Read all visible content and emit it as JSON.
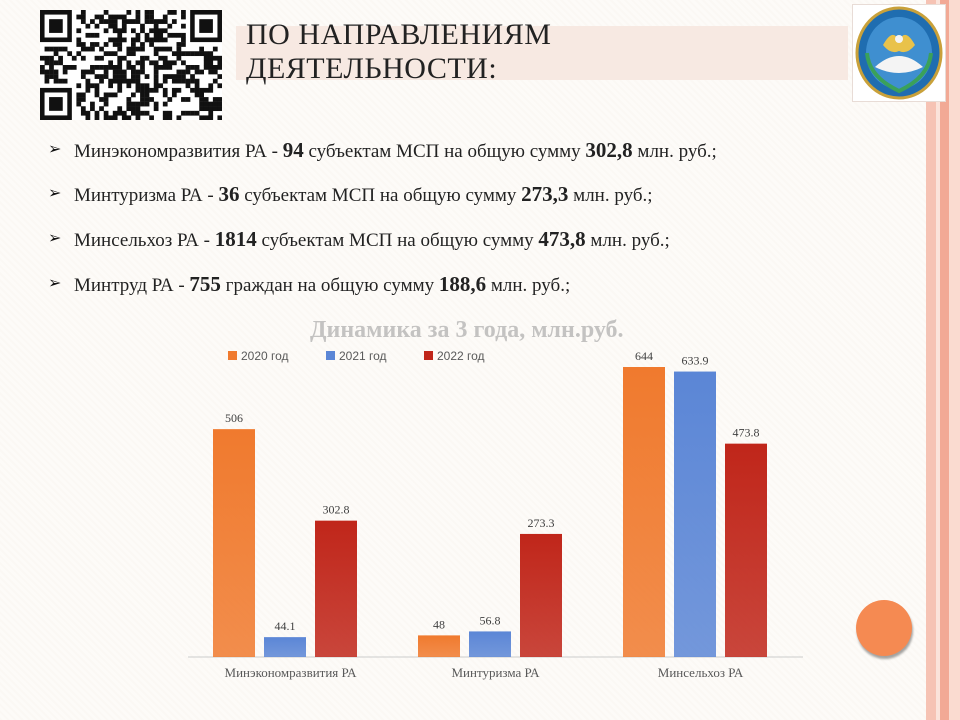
{
  "title_line1": "ПО НАПРАВЛЕНИЯМ",
  "title_line2": "ДЕЯТЕЛЬНОСТИ:",
  "bullets": [
    {
      "pre": "Минэкономразвития РА - ",
      "count": "94",
      "mid": " субъектам МСП на общую сумму ",
      "amount": "302,8",
      "post": " млн. руб.;"
    },
    {
      "pre": "Минтуризма РА - ",
      "count": "36",
      "mid": " субъектам МСП на общую сумму ",
      "amount": "273,3",
      "post": " млн. руб.;"
    },
    {
      "pre": "Минсельхоз РА - ",
      "count": "1814",
      "mid": " субъектам МСП на общую сумму ",
      "amount": "473,8",
      "post": " млн. руб.;"
    },
    {
      "pre": "Минтруд РА - ",
      "count": "755",
      "mid": " граждан на общую сумму ",
      "amount": "188,6",
      "post": " млн. руб.;"
    }
  ],
  "colors": {
    "s2020": "#f07a2e",
    "s2021": "#5b86d6",
    "s2022": "#c0261a"
  },
  "chart_data": {
    "type": "bar",
    "title": "Динамика за 3 года, млн.руб.",
    "categories": [
      "Минэкономразвития РА",
      "Минтуризма РА",
      "Минсельхоз РА"
    ],
    "series": [
      {
        "name": "2020 год",
        "values": [
          506,
          48,
          644
        ]
      },
      {
        "name": "2021 год",
        "values": [
          44.1,
          56.8,
          633.9
        ]
      },
      {
        "name": "2022 год",
        "values": [
          302.8,
          273.3,
          473.8
        ]
      }
    ],
    "data_labels": [
      [
        "506",
        "48",
        "644"
      ],
      [
        "44.1",
        "56.8",
        "633.9"
      ],
      [
        "302.8",
        "273.3",
        "473.8"
      ]
    ],
    "legend": "top",
    "grid": false
  }
}
